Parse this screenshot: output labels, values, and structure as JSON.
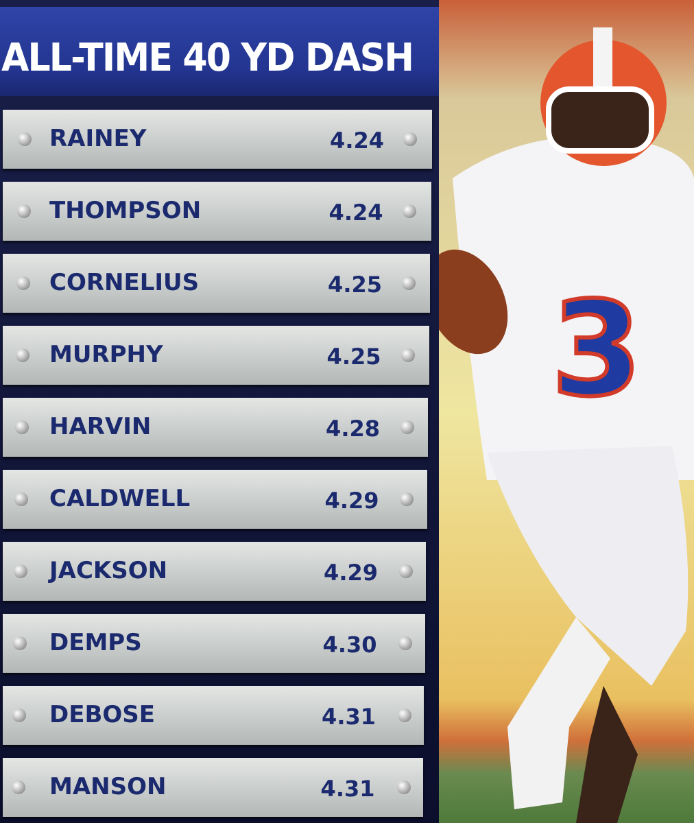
{
  "board": {
    "title": "ALL-TIME 40 YD DASH",
    "rows": [
      {
        "name": "RAINEY",
        "time": "4.24"
      },
      {
        "name": "THOMPSON",
        "time": "4.24"
      },
      {
        "name": "CORNELIUS",
        "time": "4.25"
      },
      {
        "name": "MURPHY",
        "time": "4.25"
      },
      {
        "name": "HARVIN",
        "time": "4.28"
      },
      {
        "name": "CALDWELL",
        "time": "4.29"
      },
      {
        "name": "JACKSON",
        "time": "4.29"
      },
      {
        "name": "DEMPS",
        "time": "4.30"
      },
      {
        "name": "DEBOSE",
        "time": "4.31"
      },
      {
        "name": "MANSON",
        "time": "4.31"
      }
    ]
  },
  "photo": {
    "jersey_number": "3"
  }
}
